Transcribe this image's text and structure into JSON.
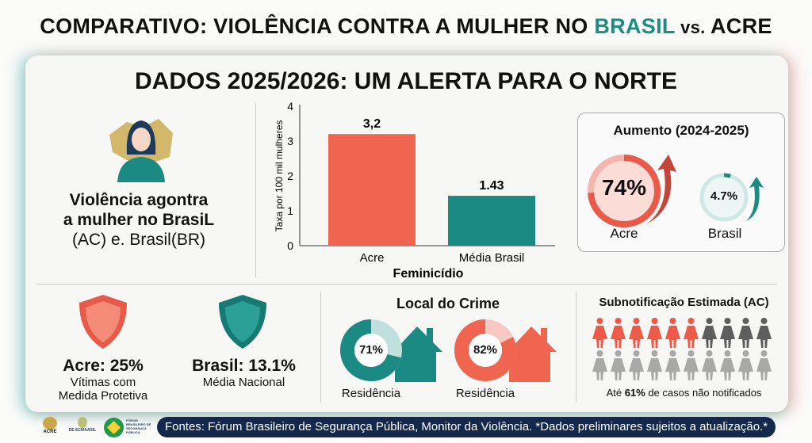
{
  "title": {
    "prefix": "COMPARATIVO: VIOLÊNCIA CONTRA A MULHER NO ",
    "brasil": "BRASIL",
    "vs": " vs. ",
    "acre": "ACRE"
  },
  "heading": "DADOS 2025/2026: UM ALERTA PARA O NORTE",
  "left_panel": {
    "line1": "Violência agontra",
    "line2": "a mulher no BrasiL",
    "line3": "(AC) e. Brasil(BR)"
  },
  "chart_data": {
    "type": "bar",
    "categories": [
      "Acre",
      "Média Brasil"
    ],
    "values": [
      3.2,
      1.43
    ],
    "value_labels": [
      "3,2",
      "1.43"
    ],
    "xlabel": "Feminicídio",
    "ylabel": "Taxa por 100 mil mulheres",
    "ylim": [
      0,
      4
    ],
    "yticks": [
      "0",
      "1",
      "2",
      "3",
      "4"
    ],
    "colors": [
      "#f06550",
      "#1a8a82"
    ]
  },
  "increase": {
    "title": "Aumento (2024-2025)",
    "acre_value": "74%",
    "acre_label": "Acre",
    "brasil_value": "4.7%",
    "brasil_label": "Brasil",
    "acre_pct": 74,
    "brasil_pct": 4.7
  },
  "protective": {
    "acre_title": "Acre: 25%",
    "acre_sub1": "Vítimas com",
    "acre_sub2": "Medida Protetiva",
    "brasil_title": "Brasil: 13.1%",
    "brasil_sub": "Média Nacional"
  },
  "crime_location": {
    "title": "Local do Crime",
    "items": [
      {
        "value": "71%",
        "label": "Residência",
        "pct": 71,
        "color": "#1a8a82",
        "light": "#bfe0dc"
      },
      {
        "value": "82%",
        "label": "Residência",
        "pct": 82,
        "color": "#f06550",
        "light": "#f8c9c2"
      }
    ]
  },
  "underreporting": {
    "title": "Subnotificação Estimada (AC)",
    "pre": "Até ",
    "value": "61%",
    "post": " de casos não notificados",
    "red": 6,
    "dark": 4,
    "total": 20
  },
  "footer": {
    "sources": "Fontes: Fórum Brasileiro de Segurança Pública, Monitor da Violência. *Dados preliminares sujeitos a atualização.*",
    "logo1": "ACRE",
    "logo2": "DE ECMAASIL",
    "logo3": "FÓRUM BRASILEIRO DE SEGURANÇA PÚBLICA"
  },
  "colors": {
    "teal": "#1a8a82",
    "red": "#f06550",
    "navy": "#13284a"
  }
}
